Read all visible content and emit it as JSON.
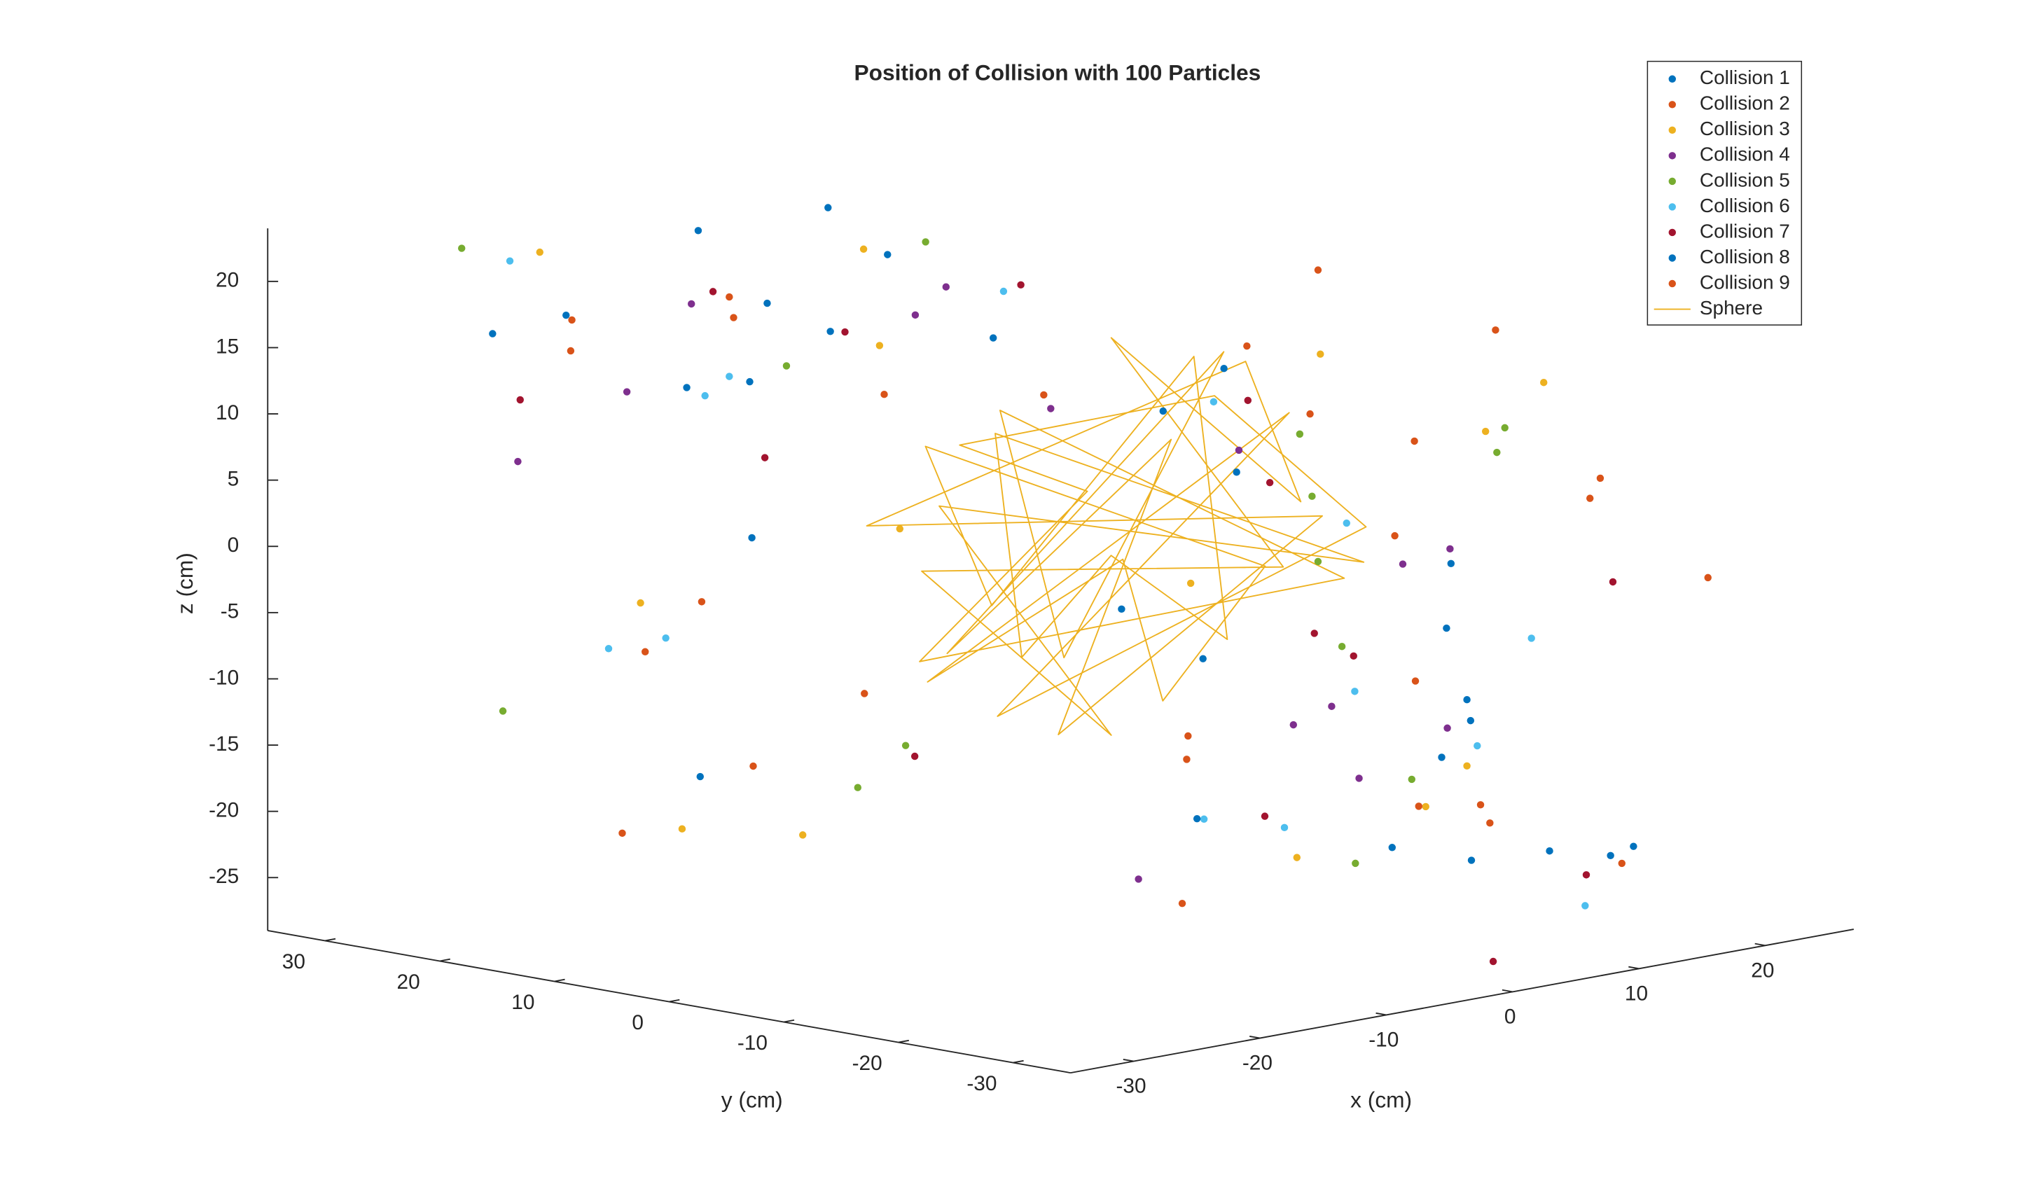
{
  "chart_data": {
    "type": "scatter3d",
    "title": "Position of Collision with 100 Particles",
    "xlabel": "x (cm)",
    "ylabel": "y (cm)",
    "zlabel": "z (cm)",
    "xlim": [
      -35,
      27
    ],
    "ylim": [
      -35,
      35
    ],
    "zlim": [
      -29,
      24
    ],
    "xticks": [
      -30,
      -20,
      -10,
      0,
      10,
      20
    ],
    "yticks": [
      30,
      20,
      10,
      0,
      -10,
      -20,
      -30
    ],
    "zticks": [
      20,
      15,
      10,
      5,
      0,
      -5,
      -10,
      -15,
      -20,
      -25
    ],
    "legend": "top-right",
    "series": [
      {
        "name": "Collision 1",
        "color": "#0072BD",
        "style": "dot",
        "x": [
          -25,
          12,
          18,
          -5,
          3,
          22,
          -15,
          8,
          -28,
          15,
          0,
          -10,
          25,
          5
        ],
        "y": [
          20,
          -25,
          10,
          -30,
          28,
          -5,
          15,
          -20,
          5,
          12,
          -8,
          25,
          -18,
          30
        ],
        "z": [
          18,
          -22,
          8,
          -18,
          20,
          -10,
          12,
          -15,
          -14,
          5,
          -8,
          21,
          -25,
          10
        ]
      },
      {
        "name": "Collision 2",
        "color": "#D95319",
        "style": "dot",
        "x": [
          -20,
          15,
          5,
          -12,
          24,
          -3,
          10,
          -26,
          18,
          -8,
          2,
          20,
          -15,
          27
        ],
        "y": [
          25,
          -10,
          -28,
          18,
          0,
          30,
          -22,
          12,
          8,
          -15,
          22,
          -30,
          5,
          -12
        ],
        "z": [
          16,
          -12,
          19,
          -18,
          3,
          14,
          -20,
          -6,
          10,
          -24,
          7,
          -2,
          -10,
          0
        ]
      },
      {
        "name": "Collision 3",
        "color": "#EDB120",
        "style": "dot",
        "x": [
          -18,
          10,
          22,
          -8,
          4,
          -30,
          14,
          -2,
          26,
          -14,
          7,
          19,
          -24,
          1
        ],
        "y": [
          30,
          -20,
          6,
          -25,
          26,
          8,
          -12,
          18,
          -4,
          22,
          -30,
          14,
          -8,
          28
        ],
        "z": [
          20,
          -16,
          9,
          -19,
          17,
          -1,
          -21,
          12,
          4,
          -23,
          15,
          -9,
          6,
          -27
        ]
      },
      {
        "name": "Collision 4",
        "color": "#7E2F8E",
        "style": "dot",
        "x": [
          -22,
          6,
          17,
          -11,
          25,
          -4,
          12,
          -27,
          9,
          -16,
          21,
          3,
          -6,
          14
        ],
        "y": [
          18,
          -15,
          24,
          -28,
          -2,
          10,
          -6,
          22,
          27,
          -20,
          12,
          -26,
          30,
          -10
        ],
        "z": [
          12,
          -17,
          3,
          -8,
          -5,
          18,
          -14,
          7,
          11,
          -20,
          1,
          -11,
          14,
          -3
        ]
      },
      {
        "name": "Collision 5",
        "color": "#77AC30",
        "style": "dot",
        "x": [
          -26,
          11,
          2,
          -13,
          20,
          -7,
          16,
          24,
          -1,
          8,
          -19,
          13,
          -30,
          5
        ],
        "y": [
          28,
          -8,
          -24,
          14,
          4,
          -29,
          -16,
          10,
          21,
          25,
          -3,
          -20,
          20,
          -12
        ],
        "z": [
          22,
          -9,
          -15,
          13,
          -6,
          -19,
          6,
          2,
          -22,
          17,
          -12,
          9,
          -11,
          4
        ]
      },
      {
        "name": "Collision 6",
        "color": "#4DBEEE",
        "style": "dot",
        "x": [
          -24,
          9,
          19,
          -9,
          26,
          -3,
          13,
          -28,
          6,
          15,
          -14,
          1,
          22,
          -18
        ],
        "y": [
          26,
          -22,
          12,
          -18,
          -8,
          30,
          -27,
          8,
          16,
          -4,
          20,
          -14,
          3,
          24
        ],
        "z": [
          21,
          -14,
          5,
          -17,
          -11,
          8,
          -26,
          -4,
          15,
          -1,
          10,
          -20,
          -16,
          -9
        ]
      },
      {
        "name": "Collision 7",
        "color": "#A2142F",
        "style": "dot",
        "x": [
          -17,
          14,
          7,
          -25,
          21,
          -6,
          11,
          -2,
          27,
          -12,
          3,
          18,
          -21,
          9
        ],
        "y": [
          16,
          -26,
          -10,
          24,
          2,
          -20,
          20,
          28,
          -14,
          10,
          -30,
          6,
          -6,
          -2
        ],
        "z": [
          19,
          -24,
          -7,
          11,
          -13,
          -17,
          14,
          2,
          -6,
          16,
          -28,
          0,
          -12,
          9
        ]
      },
      {
        "name": "Collision 8",
        "color": "#0072BD",
        "style": "dot",
        "x": [
          -29,
          16,
          4,
          -10,
          23,
          -5,
          10,
          -23,
          19,
          -15,
          0,
          25,
          7,
          -1
        ],
        "y": [
          22,
          -12,
          -27,
          26,
          -6,
          14,
          -20,
          6,
          10,
          -24,
          30,
          -16,
          18,
          -2
        ],
        "z": [
          17,
          -3,
          -21,
          9,
          -17,
          20,
          -11,
          3,
          0,
          -15,
          13,
          -26,
          11,
          -5
        ]
      },
      {
        "name": "Collision 9",
        "color": "#D95319",
        "style": "dot",
        "x": [
          -21,
          8,
          20,
          -14,
          26,
          -7,
          15,
          -26,
          11,
          -3,
          23,
          2,
          -19,
          17
        ],
        "y": [
          24,
          -18,
          4,
          -22,
          -14,
          28,
          -28,
          14,
          18,
          -10,
          8,
          -30,
          12,
          -6
        ],
        "z": [
          14,
          -19,
          16,
          -11,
          2,
          -8,
          -23,
          -20,
          6,
          -13,
          4,
          -16,
          18,
          -2
        ]
      },
      {
        "name": "Sphere",
        "color": "#EDB120",
        "style": "line",
        "x": [
          9,
          -12,
          0,
          12,
          -9,
          5,
          -10,
          10,
          -5,
          14,
          -2,
          -14,
          2,
          11,
          -10,
          2,
          -11,
          10,
          0,
          0,
          -15,
          0,
          0,
          15,
          7,
          -13,
          4,
          -6,
          12,
          -3,
          8,
          -11,
          3,
          13,
          -7
        ],
        "y": [
          12,
          0,
          -9,
          -9,
          0,
          -10,
          5,
          10,
          -10,
          2,
          14,
          -5,
          -5,
          2,
          -11,
          10,
          -2,
          -11,
          15,
          0,
          0,
          -15,
          0,
          0,
          -4,
          7,
          -14,
          -2,
          8,
          11,
          -1,
          -8,
          13,
          -6,
          9
        ],
        "z": [
          0,
          9,
          12,
          0,
          -12,
          10,
          -10,
          -5,
          -10,
          -5,
          5,
          -2,
          14,
          -10,
          2,
          -11,
          10,
          -2,
          0,
          -15,
          0,
          0,
          15,
          0,
          12.6,
          2,
          3,
          -13.6,
          4,
          -10,
          12.7,
          -6,
          7,
          -4.5,
          -9.6
        ]
      }
    ]
  }
}
